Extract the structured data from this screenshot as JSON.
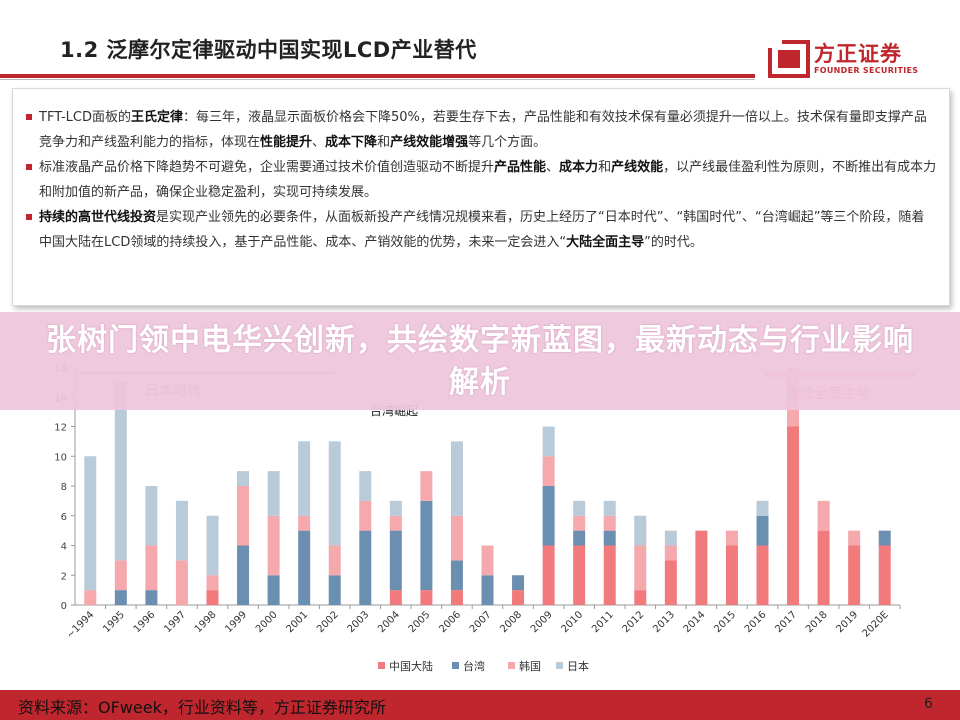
{
  "header": {
    "title": "1.2 泛摩尔定律驱动中国实现LCD产业替代"
  },
  "logo": {
    "cn": "方正证券",
    "en": "FOUNDER SECURITIES"
  },
  "colors": {
    "brand_red": "#c0262d",
    "china": "#f07a7c",
    "taiwan": "#6b8fb0",
    "korea": "#f5a9ad",
    "japan": "#b9cad9"
  },
  "bullets": [
    {
      "parts": [
        {
          "t": "TFT-LCD面板的"
        },
        {
          "t": "王氏定律",
          "b": true
        },
        {
          "t": "：每三年，液晶显示面板价格会下降50%，若要生存下去，产品性能和有效技术保有量必须提升一倍以上。技术保有量即支撑产品竞争力和产线盈利能力的指标，体现在"
        },
        {
          "t": "性能提升",
          "b": true
        },
        {
          "t": "、"
        },
        {
          "t": "成本下降",
          "b": true
        },
        {
          "t": "和"
        },
        {
          "t": "产线效能增强",
          "b": true
        },
        {
          "t": "等几个方面。"
        }
      ]
    },
    {
      "parts": [
        {
          "t": "标准液晶产品价格下降趋势不可避免，企业需要通过技术价值创造驱动不断提升"
        },
        {
          "t": "产品性能",
          "b": true
        },
        {
          "t": "、"
        },
        {
          "t": "成本力",
          "b": true
        },
        {
          "t": "和"
        },
        {
          "t": "产线效能",
          "b": true
        },
        {
          "t": "，以产线最佳盈利性为原则，不断推出有成本力和附加值的新产品，确保企业稳定盈利，实现可持续发展。"
        }
      ]
    },
    {
      "parts": [
        {
          "t": "持续的高世代线投资",
          "b": true
        },
        {
          "t": "是实现产业领先的必要条件，从面板新投产产线情况规模来看，历史上经历了“日本时代”、“韩国时代”、“台湾崛起”等三个阶段，随着中国大陆在LCD领域的持续投入，基于产品性能、成本、产销效能的优势，未来一定会进入“"
        },
        {
          "t": "大陆全面主导",
          "b": true
        },
        {
          "t": "”的时代。"
        }
      ]
    }
  ],
  "banner": {
    "text": "张树门领中电华兴创新，共绘数字新蓝图，最新动态与行业影响解析"
  },
  "chart_data": {
    "type": "bar",
    "stacked": true,
    "categories": [
      "~1994",
      "1995",
      "1996",
      "1997",
      "1998",
      "1999",
      "2000",
      "2001",
      "2002",
      "2003",
      "2004",
      "2005",
      "2006",
      "2007",
      "2008",
      "2009",
      "2010",
      "2011",
      "2012",
      "2013",
      "2014",
      "2015",
      "2016",
      "2017",
      "2018",
      "2019",
      "2020E"
    ],
    "series": [
      {
        "name": "中国大陆",
        "color": "#f07a7c",
        "values": [
          0,
          0,
          0,
          0,
          1,
          0,
          0,
          0,
          0,
          0,
          1,
          1,
          1,
          0,
          1,
          4,
          4,
          4,
          1,
          3,
          5,
          4,
          4,
          12,
          5,
          4,
          4
        ]
      },
      {
        "name": "台湾",
        "color": "#6b8fb0",
        "values": [
          0,
          1,
          1,
          0,
          0,
          4,
          2,
          5,
          2,
          5,
          4,
          6,
          2,
          2,
          1,
          4,
          1,
          1,
          0,
          0,
          0,
          0,
          2,
          0,
          0,
          0,
          1
        ]
      },
      {
        "name": "韩国",
        "color": "#f5a9ad",
        "values": [
          1,
          2,
          3,
          3,
          1,
          4,
          4,
          1,
          2,
          2,
          1,
          2,
          3,
          2,
          0,
          2,
          1,
          1,
          3,
          1,
          0,
          1,
          0,
          4,
          2,
          1,
          0
        ]
      },
      {
        "name": "日本",
        "color": "#b9cad9",
        "values": [
          9,
          12,
          4,
          4,
          4,
          1,
          3,
          5,
          7,
          2,
          1,
          0,
          5,
          0,
          0,
          2,
          1,
          1,
          2,
          1,
          0,
          0,
          1,
          0,
          0,
          0,
          0
        ]
      }
    ],
    "ylim": [
      0,
      16
    ],
    "yticks": [
      0,
      2,
      4,
      6,
      8,
      10,
      12,
      14,
      16
    ],
    "grid": false,
    "legend": "bottom",
    "annotations": [
      {
        "label": "日本时代",
        "color": "#888888"
      },
      {
        "label": "台湾崛起",
        "color": "#222222"
      },
      {
        "label": "大陆全面主导",
        "color": "#e06468"
      }
    ]
  },
  "footer": {
    "source": "资料来源：OFweek，行业资料等，方正证券研究所",
    "page": "6"
  }
}
